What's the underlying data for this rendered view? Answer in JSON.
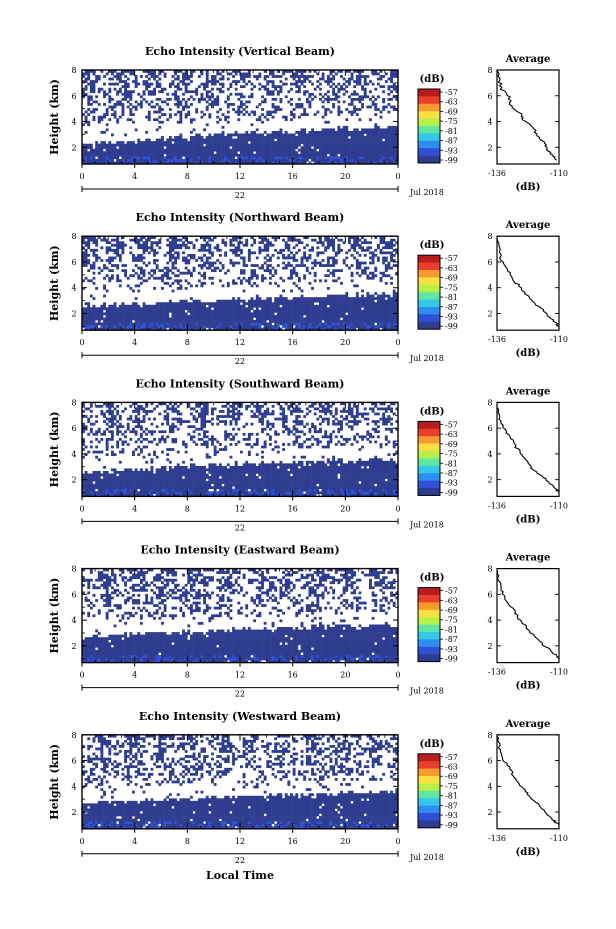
{
  "figure": {
    "xlabel": "Local Time",
    "date_label": "Jul 2018",
    "day_label": "22",
    "ylabel": "Height (km)",
    "avg_title": "Average",
    "unit_label": "(dB)",
    "avg_xlabel": "(dB)"
  },
  "colors": {
    "palette": [
      "#2e3d8f",
      "#3050d8",
      "#2c8ff0",
      "#33c8e8",
      "#5fe6a0",
      "#b8f04a",
      "#f8e040",
      "#f89a30",
      "#e8402a",
      "#b81d1d"
    ],
    "background": "#ffffff"
  },
  "chart_data": [
    {
      "type": "heatmap",
      "title": "Echo Intensity (Vertical Beam)",
      "xlabel": "Local Time",
      "ylabel": "Height (km)",
      "xlim": [
        0,
        24
      ],
      "ylim": [
        0.7,
        8
      ],
      "xticks": [
        "0",
        "4",
        "8",
        "12",
        "16",
        "20",
        "0"
      ],
      "yticks": [
        "2",
        "4",
        "6",
        "8"
      ],
      "colorbar": {
        "label": "(dB)",
        "ticks": [
          "-57",
          "-63",
          "-69",
          "-75",
          "-81",
          "-87",
          "-93",
          "-99"
        ]
      },
      "pattern": {
        "low_solid_top_km": [
          2.2,
          3.1,
          3.6
        ],
        "gap_top_km": [
          3.7,
          4.5
        ]
      },
      "average_profile": {
        "title": "Average",
        "xlabel": "(dB)",
        "xlim": [
          -136,
          -110
        ],
        "ylim": [
          0.7,
          8
        ],
        "xticks": [
          "-136",
          "-110"
        ],
        "yticks": [
          "2",
          "4",
          "6",
          "8"
        ],
        "points": [
          [
            -136,
            8.0
          ],
          [
            -135,
            7.2
          ],
          [
            -134,
            6.5
          ],
          [
            -131,
            5.9
          ],
          [
            -130,
            5.2
          ],
          [
            -126,
            4.6
          ],
          [
            -125,
            4.1
          ],
          [
            -121,
            3.6
          ],
          [
            -119,
            2.9
          ],
          [
            -116,
            2.3
          ],
          [
            -115,
            1.8
          ],
          [
            -112,
            1.3
          ],
          [
            -111,
            1.0
          ]
        ]
      }
    },
    {
      "type": "heatmap",
      "title": "Echo Intensity (Northward Beam)",
      "xlabel": "Local Time",
      "ylabel": "Height (km)",
      "xlim": [
        0,
        24
      ],
      "ylim": [
        0.7,
        8
      ],
      "xticks": [
        "0",
        "4",
        "8",
        "12",
        "16",
        "20",
        "0"
      ],
      "yticks": [
        "2",
        "4",
        "6",
        "8"
      ],
      "colorbar": {
        "label": "(dB)",
        "ticks": [
          "-57",
          "-63",
          "-69",
          "-75",
          "-81",
          "-87",
          "-93",
          "-99"
        ]
      },
      "pattern": {
        "low_solid_top_km": [
          2.6,
          3.1,
          3.5
        ],
        "gap_top_km": [
          3.8,
          4.5
        ]
      },
      "average_profile": {
        "title": "Average",
        "xlabel": "(dB)",
        "xlim": [
          -136,
          -110
        ],
        "ylim": [
          0.7,
          8
        ],
        "xticks": [
          "-136",
          "-110"
        ],
        "yticks": [
          "2",
          "4",
          "6",
          "8"
        ],
        "points": [
          [
            -136,
            7.8
          ],
          [
            -135,
            6.8
          ],
          [
            -134,
            6.0
          ],
          [
            -131,
            5.3
          ],
          [
            -129,
            4.6
          ],
          [
            -126,
            4.0
          ],
          [
            -124,
            3.5
          ],
          [
            -121,
            2.9
          ],
          [
            -117,
            2.3
          ],
          [
            -114,
            1.7
          ],
          [
            -111,
            1.2
          ],
          [
            -110,
            1.0
          ]
        ]
      }
    },
    {
      "type": "heatmap",
      "title": "Echo Intensity (Southward Beam)",
      "xlabel": "Local Time",
      "ylabel": "Height (km)",
      "xlim": [
        0,
        24
      ],
      "ylim": [
        0.7,
        8
      ],
      "xticks": [
        "0",
        "4",
        "8",
        "12",
        "16",
        "20",
        "0"
      ],
      "yticks": [
        "2",
        "4",
        "6",
        "8"
      ],
      "colorbar": {
        "label": "(dB)",
        "ticks": [
          "-57",
          "-63",
          "-69",
          "-75",
          "-81",
          "-87",
          "-93",
          "-99"
        ]
      },
      "pattern": {
        "low_solid_top_km": [
          2.6,
          3.2,
          3.6
        ],
        "gap_top_km": [
          3.8,
          4.6
        ]
      },
      "average_profile": {
        "title": "Average",
        "xlabel": "(dB)",
        "xlim": [
          -136,
          -110
        ],
        "ylim": [
          0.7,
          8
        ],
        "xticks": [
          "-136",
          "-110"
        ],
        "yticks": [
          "2",
          "4",
          "6",
          "8"
        ],
        "points": [
          [
            -136,
            7.6
          ],
          [
            -135,
            6.7
          ],
          [
            -133,
            5.9
          ],
          [
            -130,
            5.2
          ],
          [
            -128,
            4.5
          ],
          [
            -125,
            3.9
          ],
          [
            -123,
            3.3
          ],
          [
            -121,
            2.8
          ],
          [
            -117,
            2.3
          ],
          [
            -114,
            1.7
          ],
          [
            -111,
            1.2
          ],
          [
            -110,
            1.0
          ]
        ]
      }
    },
    {
      "type": "heatmap",
      "title": "Echo Intensity (Eastward Beam)",
      "xlabel": "Local Time",
      "ylabel": "Height (km)",
      "xlim": [
        0,
        24
      ],
      "ylim": [
        0.7,
        8
      ],
      "xticks": [
        "0",
        "4",
        "8",
        "12",
        "16",
        "20",
        "0"
      ],
      "yticks": [
        "2",
        "4",
        "6",
        "8"
      ],
      "colorbar": {
        "label": "(dB)",
        "ticks": [
          "-57",
          "-63",
          "-69",
          "-75",
          "-81",
          "-87",
          "-93",
          "-99"
        ]
      },
      "pattern": {
        "low_solid_top_km": [
          2.7,
          3.3,
          3.6
        ],
        "gap_top_km": [
          3.9,
          4.6
        ]
      },
      "average_profile": {
        "title": "Average",
        "xlabel": "(dB)",
        "xlim": [
          -136,
          -110
        ],
        "ylim": [
          0.7,
          8
        ],
        "xticks": [
          "-136",
          "-110"
        ],
        "yticks": [
          "2",
          "4",
          "6",
          "8"
        ],
        "points": [
          [
            -136,
            7.8
          ],
          [
            -135,
            6.9
          ],
          [
            -134,
            6.2
          ],
          [
            -132,
            5.5
          ],
          [
            -129,
            4.8
          ],
          [
            -127,
            4.1
          ],
          [
            -124,
            3.5
          ],
          [
            -121,
            2.9
          ],
          [
            -118,
            2.3
          ],
          [
            -114,
            1.7
          ],
          [
            -111,
            1.2
          ],
          [
            -110,
            1.0
          ]
        ]
      }
    },
    {
      "type": "heatmap",
      "title": "Echo Intensity (Westward Beam)",
      "xlabel": "Local Time",
      "ylabel": "Height (km)",
      "xlim": [
        0,
        24
      ],
      "ylim": [
        0.7,
        8
      ],
      "xticks": [
        "0",
        "4",
        "8",
        "12",
        "16",
        "20",
        "0"
      ],
      "yticks": [
        "2",
        "4",
        "6",
        "8"
      ],
      "colorbar": {
        "label": "(dB)",
        "ticks": [
          "-57",
          "-63",
          "-69",
          "-75",
          "-81",
          "-87",
          "-93",
          "-99"
        ]
      },
      "pattern": {
        "low_solid_top_km": [
          2.7,
          3.2,
          3.6
        ],
        "gap_top_km": [
          3.9,
          4.6
        ]
      },
      "average_profile": {
        "title": "Average",
        "xlabel": "(dB)",
        "xlim": [
          -136,
          -110
        ],
        "ylim": [
          0.7,
          8
        ],
        "xticks": [
          "-136",
          "-110"
        ],
        "yticks": [
          "2",
          "4",
          "6",
          "8"
        ],
        "points": [
          [
            -136,
            7.9
          ],
          [
            -135,
            7.0
          ],
          [
            -134,
            6.2
          ],
          [
            -131,
            5.5
          ],
          [
            -129,
            4.8
          ],
          [
            -127,
            4.2
          ],
          [
            -124,
            3.6
          ],
          [
            -121,
            3.0
          ],
          [
            -118,
            2.4
          ],
          [
            -115,
            1.8
          ],
          [
            -112,
            1.3
          ],
          [
            -110,
            1.0
          ]
        ]
      }
    }
  ]
}
